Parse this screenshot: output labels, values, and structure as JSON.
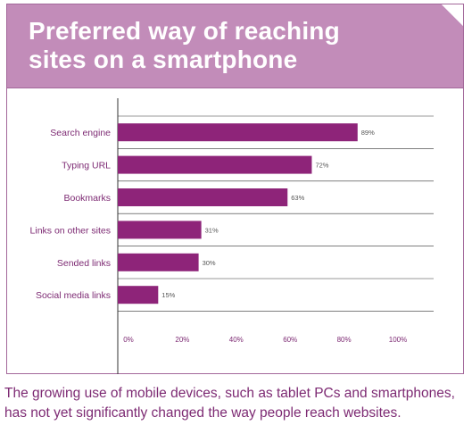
{
  "colors": {
    "header_bg": "#c28cb9",
    "frame_border": "#a3689a",
    "bar": "#8e2479",
    "title_text": "#ffffff",
    "caption_text": "#7d2a73",
    "axis_text": "#7d2a73",
    "category_text": "#7d2a73"
  },
  "header": {
    "title_line1": "Preferred way of reaching",
    "title_line2": "sites on a smartphone"
  },
  "caption": {
    "line1": "The growing use of mobile devices, such as tablet PCs and smartphones,",
    "line2": "has not yet significantly changed the way people reach websites."
  },
  "chart_data": {
    "type": "bar",
    "orientation": "horizontal",
    "title": "Preferred way of reaching sites on a smartphone",
    "categories": [
      "Search engine",
      "Typing URL",
      "Bookmarks",
      "Links on other sites",
      "Sended links",
      "Social media links"
    ],
    "values": [
      89,
      72,
      63,
      31,
      30,
      15
    ],
    "value_labels": [
      "89%",
      "72%",
      "63%",
      "31%",
      "30%",
      "15%"
    ],
    "xlim": [
      0,
      100
    ],
    "xticks": [
      0,
      20,
      40,
      60,
      80,
      100
    ],
    "xtick_labels": [
      "0%",
      "20%",
      "40%",
      "60%",
      "80%",
      "100%"
    ],
    "grid": "horizontal separators",
    "legend": "none"
  }
}
